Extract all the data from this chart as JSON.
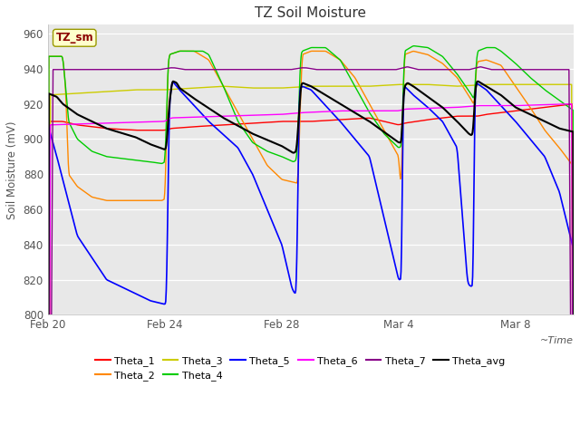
{
  "title": "TZ Soil Moisture",
  "ylabel": "Soil Moisture (mV)",
  "ylim": [
    800,
    965
  ],
  "yticks": [
    800,
    820,
    840,
    860,
    880,
    900,
    920,
    940,
    960
  ],
  "plot_bg_color": "#e8e8e8",
  "outer_bg_color": "#ffffff",
  "colors": {
    "Theta_1": "#ff0000",
    "Theta_2": "#ff8800",
    "Theta_3": "#cccc00",
    "Theta_4": "#00cc00",
    "Theta_5": "#0000ff",
    "Theta_6": "#ff00ff",
    "Theta_7": "#880088",
    "Theta_avg": "#000000"
  },
  "date_labels": [
    "Feb 20",
    "Feb 24",
    "Feb 28",
    "Mar 4",
    "Mar 8"
  ],
  "date_positions": [
    0,
    4,
    8,
    12,
    16
  ]
}
